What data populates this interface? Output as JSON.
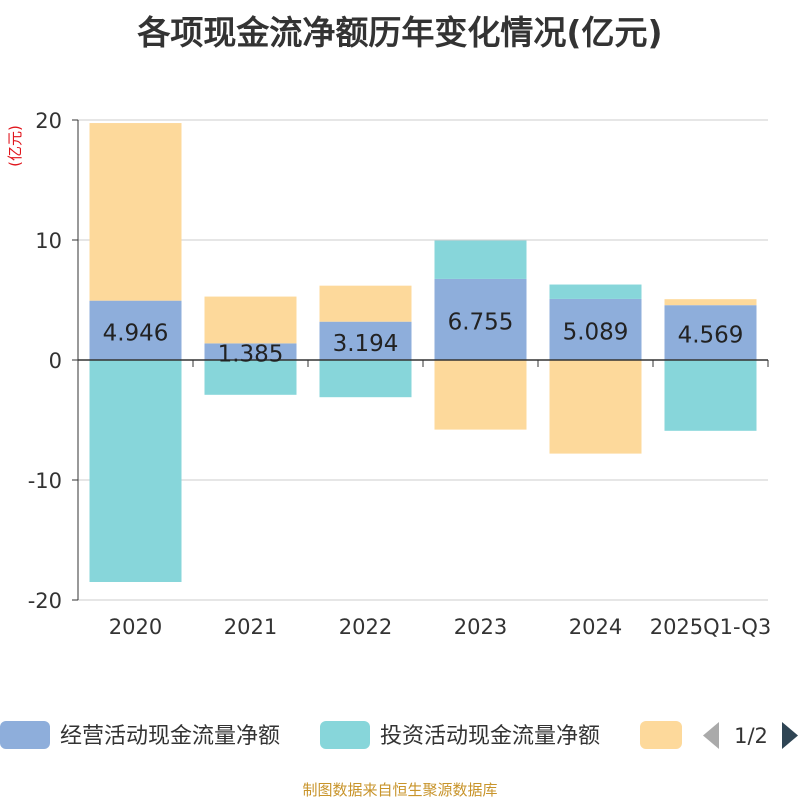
{
  "title": "各项现金流净额历年变化情况(亿元)",
  "footer": "制图数据来自恒生聚源数据库",
  "legend": {
    "page": "1/2"
  },
  "colors": {
    "operating": "#8eaedb",
    "investing": "#87d6da",
    "financing": "#fdd99b",
    "axis_unit": "#e0151c",
    "footer": "#c8942b"
  },
  "chart_data": {
    "type": "bar",
    "stacked": true,
    "ylabel": "(亿元)",
    "ylim": [
      -20,
      20
    ],
    "yticks": [
      20,
      10,
      0,
      -10,
      -20
    ],
    "categories": [
      "2020",
      "2021",
      "2022",
      "2023",
      "2024",
      "2025Q1-Q3"
    ],
    "series": [
      {
        "name": "经营活动现金流量净额",
        "values": [
          4.946,
          1.385,
          3.194,
          6.755,
          5.089,
          4.569
        ]
      },
      {
        "name": "投资活动现金流量净额",
        "values": [
          -18.5,
          -2.9,
          -3.1,
          3.2,
          1.2,
          -5.9
        ]
      },
      {
        "values": [
          14.8,
          3.9,
          3.0,
          -5.8,
          -7.8,
          0.5
        ]
      }
    ],
    "grid": true,
    "legend_position": "bottom"
  }
}
